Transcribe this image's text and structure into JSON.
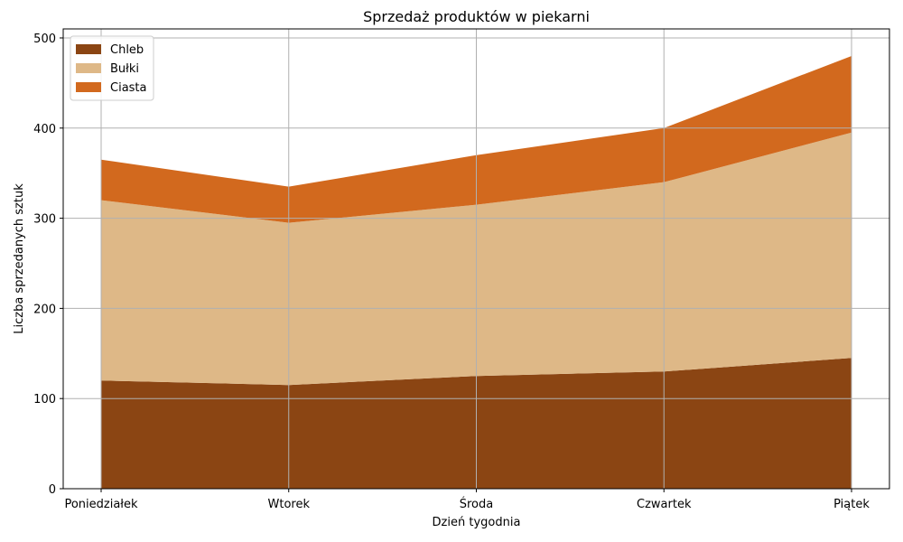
{
  "chart_data": {
    "type": "area",
    "stacked": true,
    "title": "Sprzedaż produktów w piekarni",
    "xlabel": "Dzień tygodnia",
    "ylabel": "Liczba sprzedanych sztuk",
    "categories": [
      "Poniedziałek",
      "Wtorek",
      "Środa",
      "Czwartek",
      "Piątek"
    ],
    "series": [
      {
        "name": "Chleb",
        "values": [
          120,
          115,
          125,
          130,
          145
        ],
        "color": "#8B4513"
      },
      {
        "name": "Bułki",
        "values": [
          200,
          180,
          190,
          210,
          250
        ],
        "color": "#DEB887"
      },
      {
        "name": "Ciasta",
        "values": [
          45,
          40,
          55,
          60,
          85
        ],
        "color": "#D2691E"
      }
    ],
    "ylim": [
      0,
      500
    ],
    "yticks": [
      0,
      100,
      200,
      300,
      400,
      500
    ],
    "grid": true,
    "legend_position": "top-left"
  }
}
